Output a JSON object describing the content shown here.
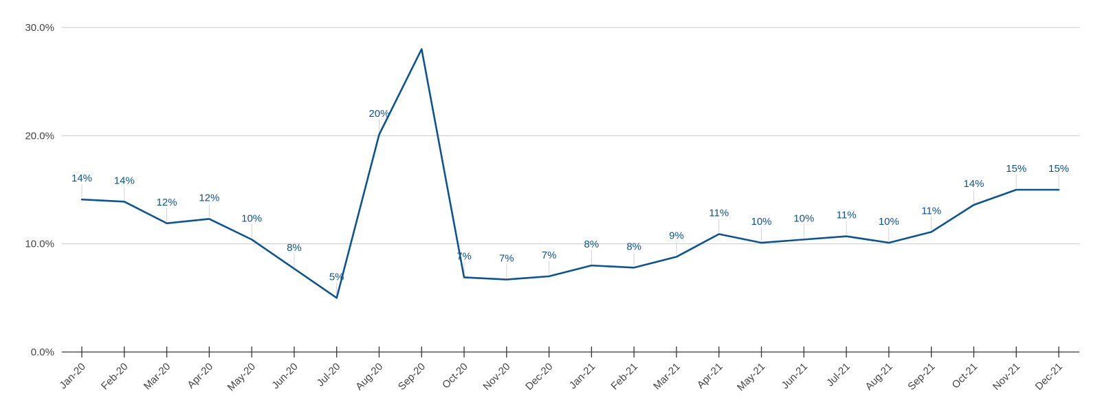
{
  "chart_data": {
    "type": "line",
    "title": "",
    "xlabel": "",
    "ylabel": "",
    "ylim": [
      0,
      30
    ],
    "y_ticks": [
      {
        "value": 0,
        "label": "0.0%"
      },
      {
        "value": 10,
        "label": "10.0%"
      },
      {
        "value": 20,
        "label": "20.0%"
      },
      {
        "value": 30,
        "label": "30.0%"
      }
    ],
    "grid": true,
    "legend": "none",
    "line_color": "#0a5394",
    "categories": [
      "Jan-20",
      "Feb-20",
      "Mar-20",
      "Apr-20",
      "May-20",
      "Jun-20",
      "Jul-20",
      "Aug-20",
      "Sep-20",
      "Oct-20",
      "Nov-20",
      "Dec-20",
      "Jan-21",
      "Feb-21",
      "Mar-21",
      "Apr-21",
      "May-21",
      "Jun-21",
      "Jul-21",
      "Aug-21",
      "Sep-21",
      "Oct-21",
      "Nov-21",
      "Dec-21"
    ],
    "series": [
      {
        "values": [
          14.1,
          13.9,
          11.9,
          12.3,
          10.4,
          7.7,
          5.0,
          20.1,
          28.0,
          6.9,
          6.7,
          7.0,
          8.0,
          7.8,
          8.8,
          10.9,
          10.1,
          10.4,
          10.7,
          10.1,
          11.1,
          13.6,
          15.0,
          15.0
        ],
        "data_labels": [
          "14%",
          "14%",
          "12%",
          "12%",
          "10%",
          "8%",
          "5%",
          "20%",
          "",
          "7%",
          "7%",
          "7%",
          "8%",
          "8%",
          "9%",
          "11%",
          "10%",
          "10%",
          "11%",
          "10%",
          "11%",
          "14%",
          "15%",
          "15%"
        ]
      }
    ]
  }
}
